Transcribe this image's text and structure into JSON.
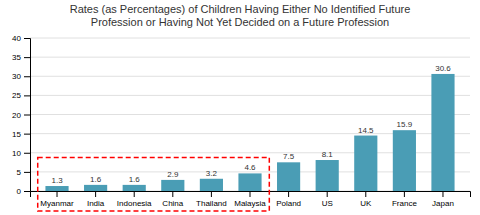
{
  "chart_data": {
    "type": "bar",
    "title": "Rates (as Percentages) of Children Having Either No Identified Future",
    "subtitle": "Profession or Having Not Yet Decided on a Future Profession",
    "categories": [
      "Myanmar",
      "India",
      "Indonesia",
      "China",
      "Thailand",
      "Malaysia",
      "Poland",
      "US",
      "UK",
      "France",
      "Japan"
    ],
    "values": [
      1.3,
      1.6,
      1.6,
      2.9,
      3.2,
      4.6,
      7.5,
      8.1,
      14.5,
      15.9,
      30.6
    ],
    "color": "#4a9db5",
    "ylim": [
      0,
      40
    ],
    "yticks": [
      0,
      5,
      10,
      15,
      20,
      25,
      30,
      35,
      40
    ],
    "grid": true,
    "data_labels": true
  }
}
